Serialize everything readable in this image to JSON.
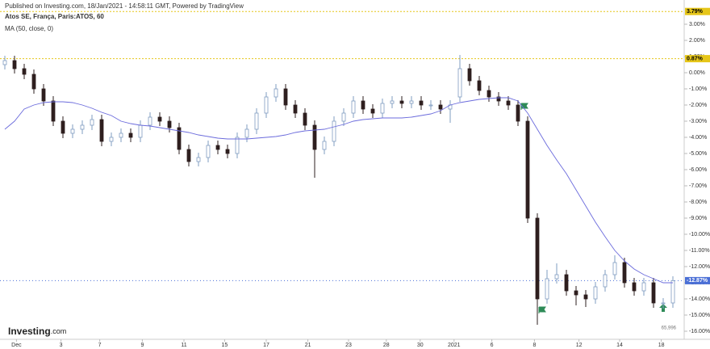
{
  "header": {
    "published": "Published on Investing.com, 18/Jan/2021 - 14:58:11 GMT, Powered by TradingView",
    "symbol": "Atos SE, França, Paris:ATOS, 60",
    "indicator": "MA (50, close, 0)",
    "logo": "Investing",
    "logo_suffix": ".com",
    "volume_label": "65,996"
  },
  "chart_data": {
    "type": "candlestick",
    "open": [
      0.5,
      0.75,
      0.25,
      -0.1,
      -1,
      -1.75,
      -3,
      -3.75,
      -3.5,
      -3.25,
      -2.9,
      -4.25,
      -4,
      -3.75,
      -4,
      -3.25,
      -2.75,
      -3,
      -3.4,
      -4.75,
      -5.5,
      -5.25,
      -4.5,
      -4.75,
      -5,
      -4,
      -3.5,
      -2.5,
      -1.5,
      -1,
      -2,
      -2.5,
      -3.25,
      -4.75,
      -4.25,
      -3,
      -2.5,
      -1.75,
      -2.25,
      -2.5,
      -1.9,
      -1.75,
      -1.9,
      -1.75,
      -2,
      -2,
      -2.25,
      -1.5,
      0.25,
      -0.5,
      -1.1,
      -1.5,
      -1.75,
      -2,
      -3,
      -9,
      -14,
      -12.75,
      -12.5,
      -13.5,
      -13.75,
      -14,
      -13.25,
      -12.5,
      -11.75,
      -13,
      -13.5,
      -13,
      -14.25,
      -14.25
    ],
    "high": [
      1.05,
      1.05,
      0.55,
      0.2,
      -0.7,
      -1.45,
      -2.7,
      -3.2,
      -2.95,
      -2.6,
      -2.6,
      -3.7,
      -3.45,
      -3.45,
      -2.95,
      -2.45,
      -2.45,
      -2.7,
      -3.1,
      -4.45,
      -4.95,
      -4.2,
      -4.2,
      -4.45,
      -3.7,
      -3.2,
      -2.2,
      -1.2,
      -0.7,
      -0.7,
      -1.7,
      -2.2,
      -2.95,
      -3.95,
      -2.7,
      -2.2,
      -1.45,
      -1.45,
      -1.95,
      -1.6,
      -1.45,
      -1.45,
      -1.45,
      -1.45,
      -1.7,
      -1.7,
      -1.7,
      1.1,
      0.55,
      -0.2,
      -0.8,
      -1.2,
      -1.45,
      -1.7,
      -2.7,
      -8.7,
      -12.2,
      -11.8,
      -12.2,
      -13.2,
      -13.45,
      -12.95,
      -12.2,
      -11.3,
      -11.45,
      -12.7,
      -12.7,
      -12.7,
      -13.95,
      -12.6
    ],
    "low": [
      0.2,
      -0.05,
      -0.4,
      -1.3,
      -2.05,
      -3.3,
      -4.05,
      -4.05,
      -3.8,
      -3.55,
      -4.55,
      -4.55,
      -4.3,
      -4.3,
      -4.3,
      -3.55,
      -3.3,
      -3.7,
      -5.05,
      -5.8,
      -5.8,
      -5.55,
      -5.05,
      -5.3,
      -5.3,
      -4.3,
      -3.8,
      -2.8,
      -1.8,
      -2.3,
      -2.8,
      -3.55,
      -6.5,
      -5.05,
      -4.55,
      -3.3,
      -2.8,
      -2.55,
      -2.8,
      -2.8,
      -2.2,
      -2.2,
      -2.2,
      -2.3,
      -2.3,
      -2.55,
      -3.1,
      -1.8,
      -0.8,
      -1.4,
      -1.8,
      -2.05,
      -2.3,
      -3.3,
      -9.3,
      -15.6,
      -14.3,
      -13.05,
      -13.8,
      -14.4,
      -14.5,
      -14.3,
      -13.55,
      -12.8,
      -13.3,
      -13.8,
      -13.8,
      -14.55,
      -14.6,
      -14.55
    ],
    "close": [
      0.75,
      0.25,
      -0.1,
      -1,
      -1.75,
      -3,
      -3.75,
      -3.5,
      -3.25,
      -2.9,
      -4.25,
      -4,
      -3.75,
      -4,
      -3.25,
      -2.75,
      -3,
      -3.4,
      -4.75,
      -5.5,
      -5.25,
      -4.5,
      -4.75,
      -5,
      -4,
      -3.5,
      -2.5,
      -1.5,
      -1,
      -2,
      -2.5,
      -3.25,
      -4.75,
      -4.25,
      -3,
      -2.5,
      -1.75,
      -2.25,
      -2.5,
      -1.9,
      -1.75,
      -1.9,
      -1.75,
      -2,
      -2,
      -2.25,
      -2,
      0.25,
      -0.5,
      -1.1,
      -1.5,
      -1.75,
      -2,
      -3,
      -9,
      -14,
      -12.75,
      -12.5,
      -13.5,
      -13.75,
      -14,
      -13.25,
      -12.5,
      -11.75,
      -13,
      -13.5,
      -13,
      -14.25,
      -14.25,
      -12.87
    ],
    "up_color": "#7f9cc0",
    "down_color": "#2e1f1f",
    "ma": {
      "name": "MA (50, close, 0)",
      "color": "#6b6bdc",
      "values": [
        -3.5,
        -3,
        -2.25,
        -2,
        -1.85,
        -1.8,
        -1.8,
        -1.85,
        -2,
        -2.2,
        -2.45,
        -2.65,
        -3,
        -3.15,
        -3.25,
        -3.3,
        -3.4,
        -3.5,
        -3.6,
        -3.7,
        -3.85,
        -3.95,
        -4.05,
        -4.1,
        -4.1,
        -4.1,
        -4.05,
        -4,
        -3.95,
        -3.85,
        -3.7,
        -3.6,
        -3.55,
        -3.5,
        -3.35,
        -3.2,
        -3,
        -2.9,
        -2.85,
        -2.8,
        -2.8,
        -2.8,
        -2.75,
        -2.65,
        -2.55,
        -2.35,
        -2,
        -1.85,
        -1.75,
        -1.65,
        -1.6,
        -1.55,
        -1.55,
        -1.75,
        -2.5,
        -3.5,
        -4.5,
        -5.4,
        -6.25,
        -7.25,
        -8.25,
        -9.25,
        -10.15,
        -11,
        -11.65,
        -12.15,
        -12.5,
        -12.75,
        -13,
        -13
      ]
    },
    "ylim": [
      -16.4,
      4
    ],
    "yticks": [
      {
        "value": 3,
        "label": "3.00%"
      },
      {
        "value": 2,
        "label": "2.00%"
      },
      {
        "value": 1,
        "label": "1.00%"
      },
      {
        "value": 0,
        "label": "0.00%"
      },
      {
        "value": -1,
        "label": "-1.00%"
      },
      {
        "value": -2,
        "label": "-2.00%"
      },
      {
        "value": -3,
        "label": "-3.00%"
      },
      {
        "value": -4,
        "label": "-4.00%"
      },
      {
        "value": -5,
        "label": "-5.00%"
      },
      {
        "value": -6,
        "label": "-6.00%"
      },
      {
        "value": -7,
        "label": "-7.00%"
      },
      {
        "value": -8,
        "label": "-8.00%"
      },
      {
        "value": -9,
        "label": "-9.00%"
      },
      {
        "value": -10,
        "label": "-10.00%"
      },
      {
        "value": -11,
        "label": "-11.00%"
      },
      {
        "value": -12,
        "label": "-12.00%"
      },
      {
        "value": -13,
        "label": "-13.00%"
      },
      {
        "value": -14,
        "label": "-14.00%"
      },
      {
        "value": -15,
        "label": "-15.00%"
      },
      {
        "value": -16,
        "label": "-16.00%"
      }
    ],
    "xticks": [
      {
        "value": 1.2,
        "label": "Dec"
      },
      {
        "value": 5.8,
        "label": "3"
      },
      {
        "value": 9.8,
        "label": "7"
      },
      {
        "value": 14.2,
        "label": "9"
      },
      {
        "value": 18.5,
        "label": "11"
      },
      {
        "value": 22.7,
        "label": "15"
      },
      {
        "value": 27,
        "label": "17"
      },
      {
        "value": 31.3,
        "label": "21"
      },
      {
        "value": 35.5,
        "label": "23"
      },
      {
        "value": 39.4,
        "label": "28"
      },
      {
        "value": 42.9,
        "label": "30"
      },
      {
        "value": 46.4,
        "label": "2021"
      },
      {
        "value": 50.3,
        "label": "6"
      },
      {
        "value": 54.7,
        "label": "8"
      },
      {
        "value": 59.3,
        "label": "12"
      },
      {
        "value": 63.5,
        "label": "14"
      },
      {
        "value": 67.8,
        "label": "18"
      }
    ],
    "price_lines": [
      {
        "value": 3.79,
        "label": "3.79%",
        "color": "#e6c619"
      },
      {
        "value": 0.87,
        "label": "0.87%",
        "color": "#e6c619"
      },
      {
        "value": -12.87,
        "label": "-12.87%",
        "color": "#4a6fd6"
      }
    ]
  }
}
